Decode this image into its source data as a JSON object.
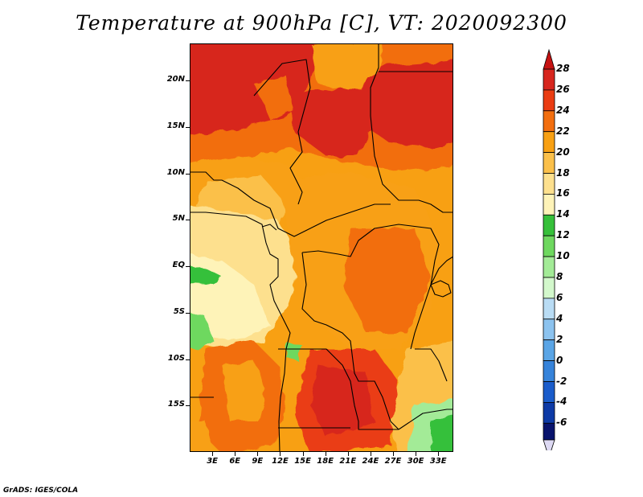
{
  "title": "Temperature at 900hPa [C], VT: 2020092300",
  "credit": "GrADS: IGES/COLA",
  "map": {
    "lon_range": [
      0,
      35
    ],
    "lat_range": [
      -20,
      24
    ],
    "lat_ticks": [
      {
        "lat": 20,
        "label": "20N"
      },
      {
        "lat": 15,
        "label": "15N"
      },
      {
        "lat": 10,
        "label": "10N"
      },
      {
        "lat": 5,
        "label": "5N"
      },
      {
        "lat": 0,
        "label": "EQ"
      },
      {
        "lat": -5,
        "label": "5S"
      },
      {
        "lat": -10,
        "label": "10S"
      },
      {
        "lat": -15,
        "label": "15S"
      }
    ],
    "lon_ticks": [
      {
        "lon": 3,
        "label": "3E"
      },
      {
        "lon": 6,
        "label": "6E"
      },
      {
        "lon": 9,
        "label": "9E"
      },
      {
        "lon": 12,
        "label": "12E"
      },
      {
        "lon": 15,
        "label": "15E"
      },
      {
        "lon": 18,
        "label": "18E"
      },
      {
        "lon": 21,
        "label": "21E"
      },
      {
        "lon": 24,
        "label": "24E"
      },
      {
        "lon": 27,
        "label": "27E"
      },
      {
        "lon": 30,
        "label": "30E"
      },
      {
        "lon": 33,
        "label": "33E"
      }
    ]
  },
  "colorbar": {
    "levels": [
      28,
      26,
      24,
      22,
      20,
      18,
      16,
      14,
      12,
      10,
      8,
      6,
      4,
      2,
      0,
      -2,
      -4,
      -6
    ],
    "colors": [
      "#d7261e",
      "#ea3c12",
      "#f26e0f",
      "#f8a013",
      "#fbc04a",
      "#fde08e",
      "#fef3b8",
      "#36c03a",
      "#6ed85f",
      "#a3eb97",
      "#d3f8cc",
      "#b9dcf4",
      "#8cc3ef",
      "#5aa5e6",
      "#3683da",
      "#1a5ccb",
      "#0d3aa6",
      "#08136d"
    ],
    "top_cap_color": "#c61212",
    "bottom_cap_color": "#ddd9f3"
  }
}
